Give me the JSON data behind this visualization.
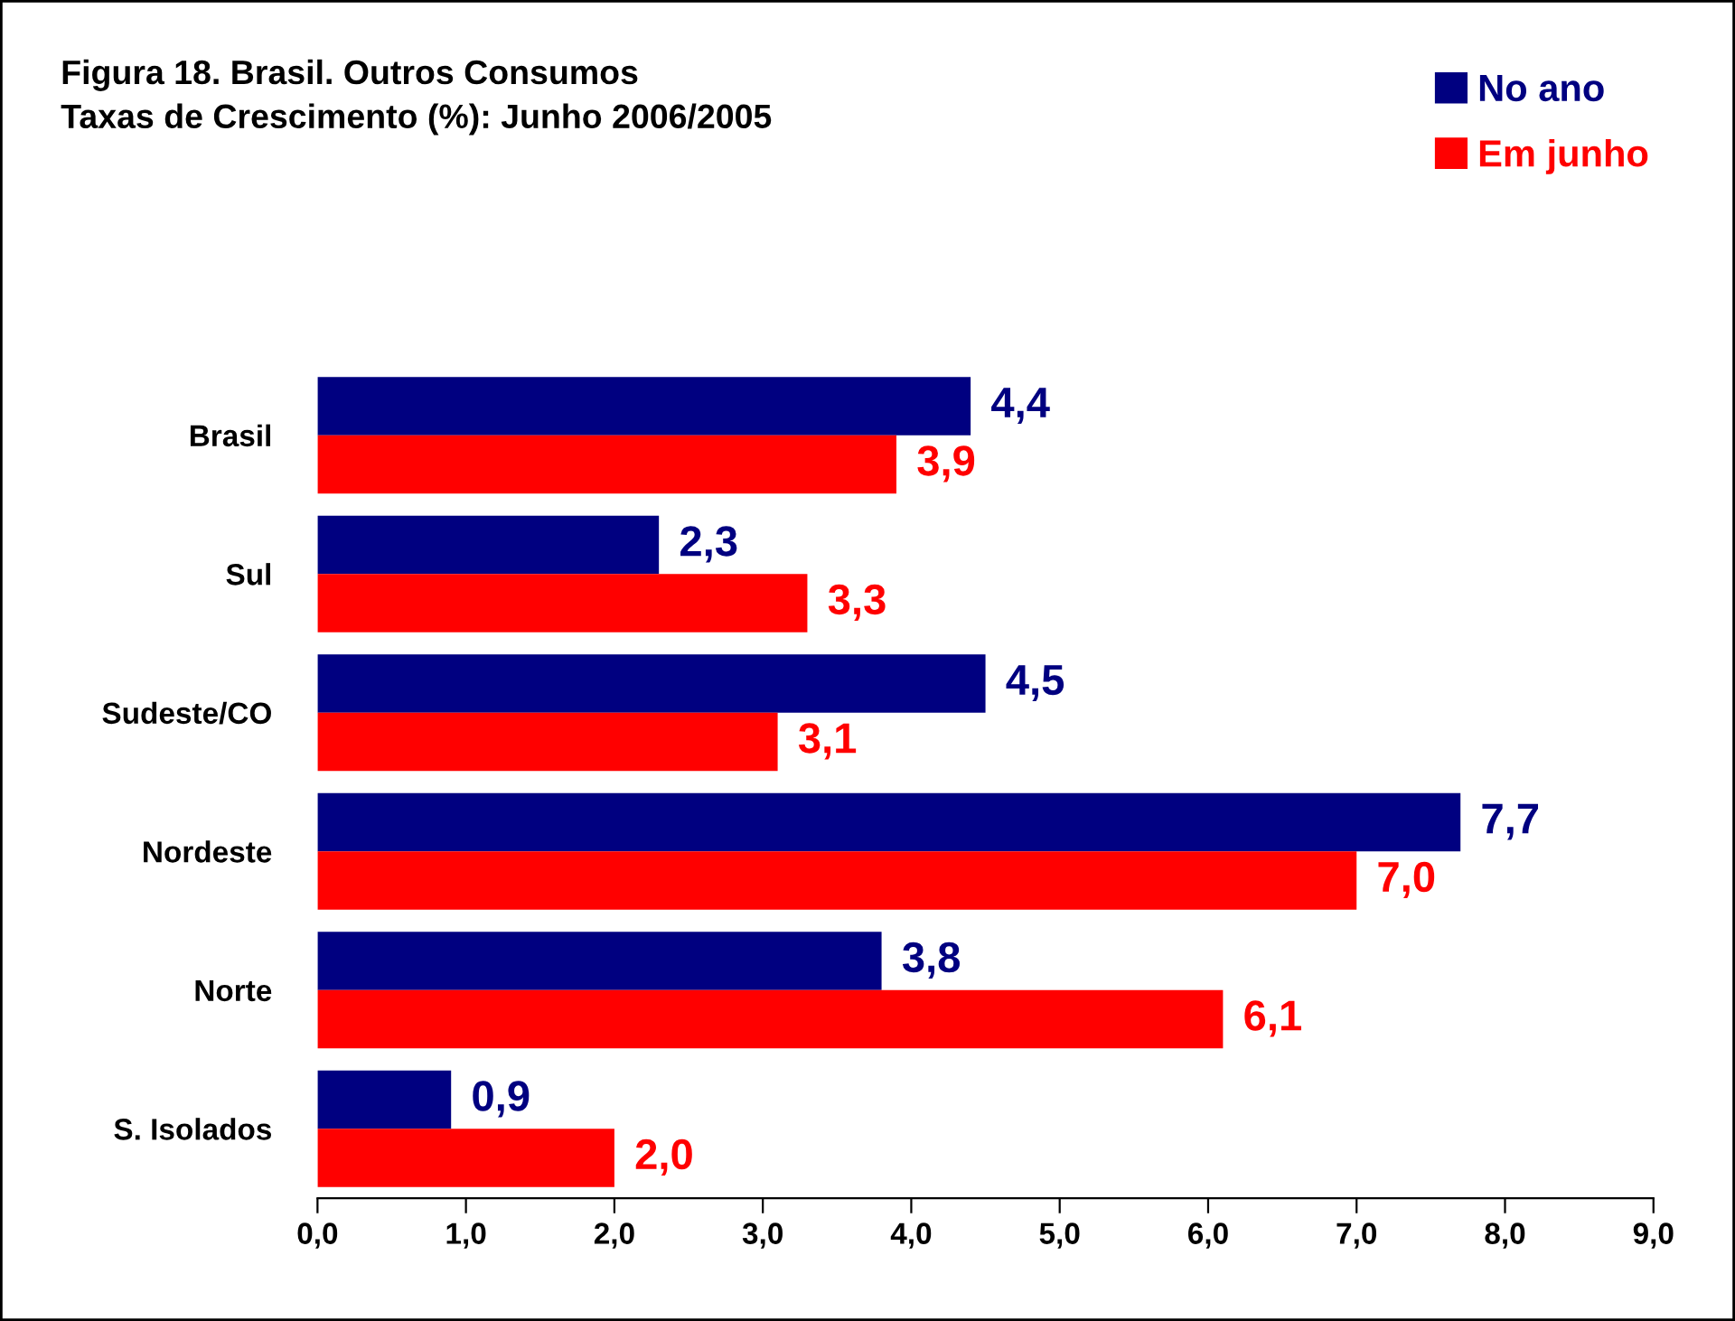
{
  "chart_data": {
    "type": "bar",
    "orientation": "horizontal",
    "title": "Figura 18. Brasil. Outros Consumos\nTaxas de Crescimento (%): Junho 2006/2005",
    "categories": [
      "Brasil",
      "Sul",
      "Sudeste/CO",
      "Nordeste",
      "Norte",
      "S. Isolados"
    ],
    "series": [
      {
        "name": "No ano",
        "color": "#000080",
        "values": [
          4.4,
          2.3,
          4.5,
          7.7,
          3.8,
          0.9
        ],
        "value_labels": [
          "4,4",
          "2,3",
          "4,5",
          "7,7",
          "3,8",
          "0,9"
        ]
      },
      {
        "name": "Em junho",
        "color": "#ff0000",
        "values": [
          3.9,
          3.3,
          3.1,
          7.0,
          6.1,
          2.0
        ],
        "value_labels": [
          "3,9",
          "3,3",
          "3,1",
          "7,0",
          "6,1",
          "2,0"
        ]
      }
    ],
    "xlim": [
      0,
      9
    ],
    "xticks": [
      {
        "value": 0,
        "label": "0,0"
      },
      {
        "value": 1,
        "label": "1,0"
      },
      {
        "value": 2,
        "label": "2,0"
      },
      {
        "value": 3,
        "label": "3,0"
      },
      {
        "value": 4,
        "label": "4,0"
      },
      {
        "value": 5,
        "label": "5,0"
      },
      {
        "value": 6,
        "label": "6,0"
      },
      {
        "value": 7,
        "label": "7,0"
      },
      {
        "value": 8,
        "label": "8,0"
      },
      {
        "value": 9,
        "label": "9,0"
      }
    ],
    "legend": "top right",
    "grid": false
  }
}
